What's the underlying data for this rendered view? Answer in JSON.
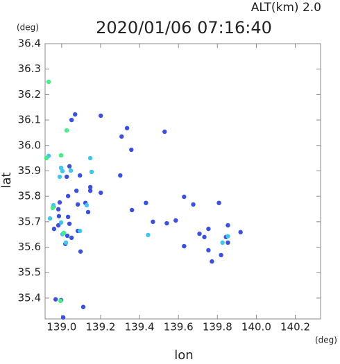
{
  "chart_data": {
    "type": "scatter",
    "title": "2020/01/06 07:16:40",
    "subtitle": "ALT(km) 2.0",
    "x_label": "lon",
    "y_label": "lat",
    "x_unit": "(deg)",
    "y_unit": "(deg)",
    "xlim": [
      138.915,
      140.33
    ],
    "ylim": [
      35.318,
      36.4
    ],
    "xticks": [
      {
        "value": 139,
        "label": "139.0"
      },
      139.2,
      139.4,
      139.6,
      139.8,
      {
        "value": 140,
        "label": "140.0"
      },
      140.2
    ],
    "yticks": [
      35.4,
      35.5,
      35.6,
      35.7,
      35.8,
      35.9,
      {
        "value": 36,
        "label": "36.0"
      },
      36.1,
      36.2,
      36.3,
      36.4
    ],
    "series": [
      {
        "color": "#3a4fe6",
        "x": [
          138.99,
          138.983,
          139.033,
          138.958,
          138.986,
          139.033,
          139.04,
          138.983,
          138.961,
          139.029,
          139.083,
          139.051,
          139.019,
          139.097,
          138.969,
          138.997,
          139.111,
          139.051,
          139.069,
          139.136,
          139.083,
          139.122,
          139.201,
          139.147,
          139.076,
          139.026,
          139.04,
          139.094,
          139.336,
          139.308,
          139.358,
          139.433,
          139.361,
          139.469,
          139.54,
          139.629,
          139.676,
          139.586,
          139.629,
          139.708,
          139.754,
          139.733,
          139.808,
          139.844,
          139.854,
          139.919,
          139.854,
          139.754,
          139.819,
          139.772,
          139.529,
          139.301,
          139.201,
          139.008,
          139.147
        ],
        "y": [
          35.776,
          35.749,
          35.801,
          35.76,
          35.722,
          35.719,
          35.692,
          35.686,
          35.672,
          35.645,
          35.664,
          35.637,
          35.613,
          35.583,
          35.395,
          35.392,
          35.365,
          36.1,
          36.122,
          35.738,
          35.768,
          35.774,
          35.814,
          35.822,
          35.822,
          35.877,
          35.918,
          35.882,
          36.068,
          36.035,
          35.983,
          35.774,
          35.746,
          35.7,
          35.694,
          35.798,
          35.768,
          35.705,
          35.604,
          35.653,
          35.672,
          35.64,
          35.774,
          35.64,
          35.686,
          35.659,
          35.618,
          35.588,
          35.569,
          35.544,
          36.054,
          35.882,
          36.117,
          35.324,
          35.836
        ]
      },
      {
        "color": "#3cc8f0",
        "x": [
          138.997,
          138.99,
          139.004,
          138.958,
          138.94,
          138.997,
          139.004,
          139.022,
          139.047,
          139.147,
          139.129,
          139.094,
          139.444,
          139.826,
          139.854,
          139.154,
          138.933
        ],
        "y": [
          35.912,
          35.877,
          35.899,
          35.765,
          35.713,
          35.697,
          35.651,
          35.618,
          35.901,
          35.95,
          35.765,
          35.664,
          35.648,
          35.618,
          35.643,
          35.896,
          35.959
        ]
      },
      {
        "color": "#40f080",
        "x": [
          138.933,
          139.026,
          138.997,
          138.954,
          138.994,
          138.922,
          139.011
        ],
        "y": [
          36.25,
          36.059,
          35.961,
          35.754,
          35.389,
          35.95,
          35.656
        ]
      }
    ]
  }
}
